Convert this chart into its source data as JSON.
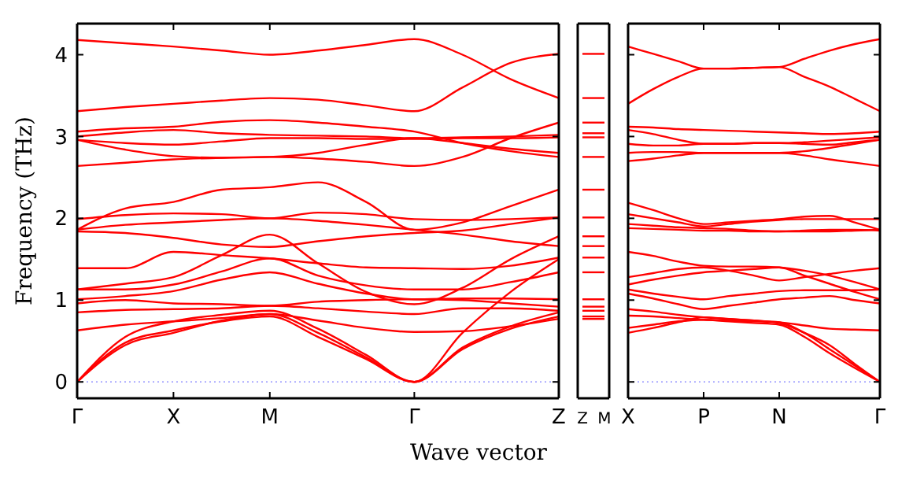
{
  "chart_data": [
    {
      "type": "line",
      "ylabel": "Frequency (THz)",
      "xlabel": "Wave vector",
      "ylim": [
        -0.2,
        4.38
      ],
      "yticks": [
        0,
        1,
        2,
        3,
        4
      ],
      "grid": false,
      "marker": "none",
      "line_style": "solid",
      "ref_lines": [
        {
          "axis": "y",
          "value": 0,
          "color": "#8080ff",
          "line_style": "dotted"
        }
      ],
      "categories": [
        "Γ",
        null,
        "X",
        null,
        "M",
        null,
        null,
        "Γ",
        null,
        null,
        "Z"
      ],
      "series": [
        {
          "color": "#ff0000",
          "values": [
            4.18,
            4.14,
            4.1,
            4.05,
            4.0,
            4.05,
            4.12,
            4.19,
            4.0,
            3.7,
            3.47
          ]
        },
        {
          "color": "#ff0000",
          "values": [
            3.31,
            3.36,
            3.4,
            3.44,
            3.47,
            3.45,
            3.38,
            3.31,
            3.6,
            3.9,
            4.01
          ]
        },
        {
          "color": "#ff0000",
          "values": [
            3.06,
            3.1,
            3.12,
            3.18,
            3.2,
            3.17,
            3.12,
            3.06,
            2.92,
            2.82,
            2.75
          ]
        },
        {
          "color": "#ff0000",
          "values": [
            3.0,
            3.05,
            3.08,
            3.04,
            3.02,
            3.01,
            3.0,
            2.98,
            2.99,
            3.0,
            3.02
          ]
        },
        {
          "color": "#ff0000",
          "values": [
            2.96,
            2.92,
            2.9,
            2.94,
            2.98,
            2.98,
            2.97,
            2.97,
            2.98,
            2.98,
            2.99
          ]
        },
        {
          "color": "#ff0000",
          "values": [
            2.96,
            2.84,
            2.76,
            2.74,
            2.75,
            2.8,
            2.9,
            2.98,
            2.92,
            2.85,
            2.8
          ]
        },
        {
          "color": "#ff0000",
          "values": [
            2.64,
            2.68,
            2.72,
            2.74,
            2.75,
            2.73,
            2.69,
            2.64,
            2.75,
            2.98,
            3.17
          ]
        },
        {
          "color": "#ff0000",
          "values": [
            1.86,
            2.12,
            2.2,
            2.35,
            2.38,
            2.44,
            2.2,
            1.86,
            1.95,
            2.15,
            2.35
          ]
        },
        {
          "color": "#ff0000",
          "values": [
            1.99,
            2.04,
            2.06,
            2.05,
            2.0,
            2.07,
            2.05,
            1.99,
            1.98,
            1.99,
            2.01
          ]
        },
        {
          "color": "#ff0000",
          "values": [
            1.86,
            1.92,
            1.95,
            1.98,
            2.0,
            1.97,
            1.92,
            1.86,
            1.8,
            1.72,
            1.66
          ]
        },
        {
          "color": "#ff0000",
          "values": [
            1.84,
            1.82,
            1.76,
            1.68,
            1.65,
            1.72,
            1.78,
            1.82,
            1.85,
            1.93,
            2.01
          ]
        },
        {
          "color": "#ff0000",
          "values": [
            1.39,
            1.39,
            1.59,
            1.55,
            1.51,
            1.45,
            1.4,
            1.39,
            1.38,
            1.42,
            1.52
          ]
        },
        {
          "color": "#ff0000",
          "values": [
            1.13,
            1.2,
            1.28,
            1.55,
            1.8,
            1.45,
            1.1,
            0.95,
            1.15,
            1.5,
            1.78
          ]
        },
        {
          "color": "#ff0000",
          "values": [
            1.13,
            1.13,
            1.19,
            1.35,
            1.51,
            1.3,
            1.18,
            1.13,
            1.13,
            1.22,
            1.34
          ]
        },
        {
          "color": "#ff0000",
          "values": [
            1.01,
            1.05,
            1.11,
            1.25,
            1.34,
            1.2,
            1.08,
            1.01,
            1.02,
            1.02,
            1.01
          ]
        },
        {
          "color": "#ff0000",
          "values": [
            0.96,
            1.0,
            0.96,
            0.95,
            0.93,
            0.98,
            1.0,
            1.01,
            1.0,
            0.96,
            0.92
          ]
        },
        {
          "color": "#ff0000",
          "values": [
            0.85,
            0.88,
            0.89,
            0.9,
            0.93,
            0.9,
            0.86,
            0.83,
            0.9,
            0.9,
            0.87
          ]
        },
        {
          "color": "#ff0000",
          "values": [
            0.63,
            0.7,
            0.74,
            0.78,
            0.83,
            0.75,
            0.66,
            0.61,
            0.62,
            0.68,
            0.77
          ]
        },
        {
          "color": "#ff0000",
          "values": [
            0,
            0.45,
            0.6,
            0.75,
            0.83,
            0.6,
            0.3,
            0,
            0.4,
            0.65,
            0.8
          ]
        },
        {
          "color": "#ff0000",
          "values": [
            0,
            0.48,
            0.63,
            0.74,
            0.8,
            0.55,
            0.28,
            0,
            0.42,
            0.68,
            0.85
          ]
        },
        {
          "color": "#ff0000",
          "values": [
            0,
            0.55,
            0.74,
            0.82,
            0.87,
            0.65,
            0.33,
            0,
            0.6,
            1.1,
            1.5
          ]
        }
      ]
    },
    {
      "type": "line",
      "tick_labels": "x",
      "ylim": [
        -0.2,
        4.38
      ],
      "yticks": [
        0,
        1,
        2,
        3,
        4
      ],
      "grid": false,
      "marker": "none",
      "line_style": "solid",
      "categories": [
        "Z",
        "M"
      ],
      "series": [
        {
          "color": "#ff0000",
          "values": [
            4.01,
            4.01
          ]
        },
        {
          "color": "#ff0000",
          "values": [
            3.47,
            3.47
          ]
        },
        {
          "color": "#ff0000",
          "values": [
            3.17,
            3.17
          ]
        },
        {
          "color": "#ff0000",
          "values": [
            3.04,
            3.04
          ]
        },
        {
          "color": "#ff0000",
          "values": [
            2.99,
            2.99
          ]
        },
        {
          "color": "#ff0000",
          "values": [
            2.75,
            2.75
          ]
        },
        {
          "color": "#ff0000",
          "values": [
            2.35,
            2.35
          ]
        },
        {
          "color": "#ff0000",
          "values": [
            2.01,
            2.01
          ]
        },
        {
          "color": "#ff0000",
          "values": [
            1.78,
            1.78
          ]
        },
        {
          "color": "#ff0000",
          "values": [
            1.66,
            1.66
          ]
        },
        {
          "color": "#ff0000",
          "values": [
            1.52,
            1.52
          ]
        },
        {
          "color": "#ff0000",
          "values": [
            1.34,
            1.34
          ]
        },
        {
          "color": "#ff0000",
          "values": [
            1.01,
            1.01
          ]
        },
        {
          "color": "#ff0000",
          "values": [
            0.92,
            0.92
          ]
        },
        {
          "color": "#ff0000",
          "values": [
            0.87,
            0.87
          ]
        },
        {
          "color": "#ff0000",
          "values": [
            0.8,
            0.8
          ]
        },
        {
          "color": "#ff0000",
          "values": [
            0.77,
            0.77
          ]
        }
      ]
    },
    {
      "type": "line",
      "tick_labels": "x",
      "ylim": [
        -0.2,
        4.38
      ],
      "yticks": [
        0,
        1,
        2,
        3,
        4
      ],
      "grid": false,
      "marker": "none",
      "line_style": "solid",
      "ref_lines": [
        {
          "axis": "y",
          "value": 0,
          "color": "#8080ff",
          "line_style": "dotted"
        }
      ],
      "categories": [
        "X",
        null,
        null,
        "P",
        null,
        null,
        "N",
        null,
        null,
        null,
        "Γ"
      ],
      "series": [
        {
          "color": "#ff0000",
          "values": [
            4.1,
            4.01,
            3.92,
            3.83,
            3.83,
            3.84,
            3.85,
            3.95,
            4.05,
            4.13,
            4.19
          ]
        },
        {
          "color": "#ff0000",
          "values": [
            3.4,
            3.58,
            3.73,
            3.83,
            3.83,
            3.84,
            3.85,
            3.73,
            3.61,
            3.46,
            3.31
          ]
        },
        {
          "color": "#ff0000",
          "values": [
            3.12,
            3.11,
            3.09,
            3.08,
            3.07,
            3.06,
            3.05,
            3.04,
            3.03,
            3.04,
            3.06
          ]
        },
        {
          "color": "#ff0000",
          "values": [
            3.08,
            3.03,
            2.96,
            2.91,
            2.91,
            2.92,
            2.92,
            2.93,
            2.95,
            2.97,
            2.99
          ]
        },
        {
          "color": "#ff0000",
          "values": [
            2.91,
            2.89,
            2.89,
            2.91,
            2.91,
            2.92,
            2.92,
            2.91,
            2.9,
            2.93,
            2.96
          ]
        },
        {
          "color": "#ff0000",
          "values": [
            2.8,
            2.81,
            2.81,
            2.8,
            2.8,
            2.8,
            2.8,
            2.82,
            2.86,
            2.91,
            2.96
          ]
        },
        {
          "color": "#ff0000",
          "values": [
            2.7,
            2.73,
            2.77,
            2.8,
            2.8,
            2.8,
            2.8,
            2.77,
            2.72,
            2.68,
            2.64
          ]
        },
        {
          "color": "#ff0000",
          "values": [
            2.19,
            2.1,
            2.0,
            1.93,
            1.95,
            1.97,
            1.99,
            2.02,
            2.03,
            1.95,
            1.86
          ]
        },
        {
          "color": "#ff0000",
          "values": [
            2.05,
            2.0,
            1.95,
            1.9,
            1.93,
            1.96,
            1.98,
            1.99,
            1.99,
            1.99,
            1.99
          ]
        },
        {
          "color": "#ff0000",
          "values": [
            1.93,
            1.91,
            1.89,
            1.88,
            1.87,
            1.85,
            1.84,
            1.84,
            1.84,
            1.85,
            1.86
          ]
        },
        {
          "color": "#ff0000",
          "values": [
            1.88,
            1.87,
            1.86,
            1.85,
            1.85,
            1.84,
            1.84,
            1.85,
            1.86,
            1.86,
            1.85
          ]
        },
        {
          "color": "#ff0000",
          "values": [
            1.59,
            1.54,
            1.47,
            1.42,
            1.41,
            1.41,
            1.4,
            1.36,
            1.3,
            1.22,
            1.13
          ]
        },
        {
          "color": "#ff0000",
          "values": [
            1.28,
            1.33,
            1.38,
            1.4,
            1.36,
            1.3,
            1.24,
            1.28,
            1.32,
            1.36,
            1.39
          ]
        },
        {
          "color": "#ff0000",
          "values": [
            1.19,
            1.25,
            1.3,
            1.34,
            1.36,
            1.38,
            1.4,
            1.3,
            1.2,
            1.1,
            1.01
          ]
        },
        {
          "color": "#ff0000",
          "values": [
            1.13,
            1.08,
            1.04,
            1.01,
            1.05,
            1.08,
            1.11,
            1.12,
            1.12,
            1.12,
            1.13
          ]
        },
        {
          "color": "#ff0000",
          "values": [
            1.08,
            1.02,
            0.95,
            0.89,
            0.93,
            0.97,
            1.01,
            1.03,
            1.05,
            1.0,
            0.96
          ]
        },
        {
          "color": "#ff0000",
          "values": [
            0.89,
            0.86,
            0.82,
            0.79,
            0.77,
            0.75,
            0.73,
            0.69,
            0.65,
            0.64,
            0.63
          ]
        },
        {
          "color": "#ff0000",
          "values": [
            0.81,
            0.8,
            0.78,
            0.76,
            0.75,
            0.74,
            0.73,
            0.6,
            0.4,
            0.2,
            0
          ]
        },
        {
          "color": "#ff0000",
          "values": [
            0.66,
            0.7,
            0.74,
            0.76,
            0.74,
            0.72,
            0.7,
            0.55,
            0.35,
            0.17,
            0
          ]
        },
        {
          "color": "#ff0000",
          "values": [
            0.6,
            0.66,
            0.73,
            0.79,
            0.77,
            0.75,
            0.72,
            0.6,
            0.45,
            0.22,
            0
          ]
        }
      ]
    }
  ]
}
